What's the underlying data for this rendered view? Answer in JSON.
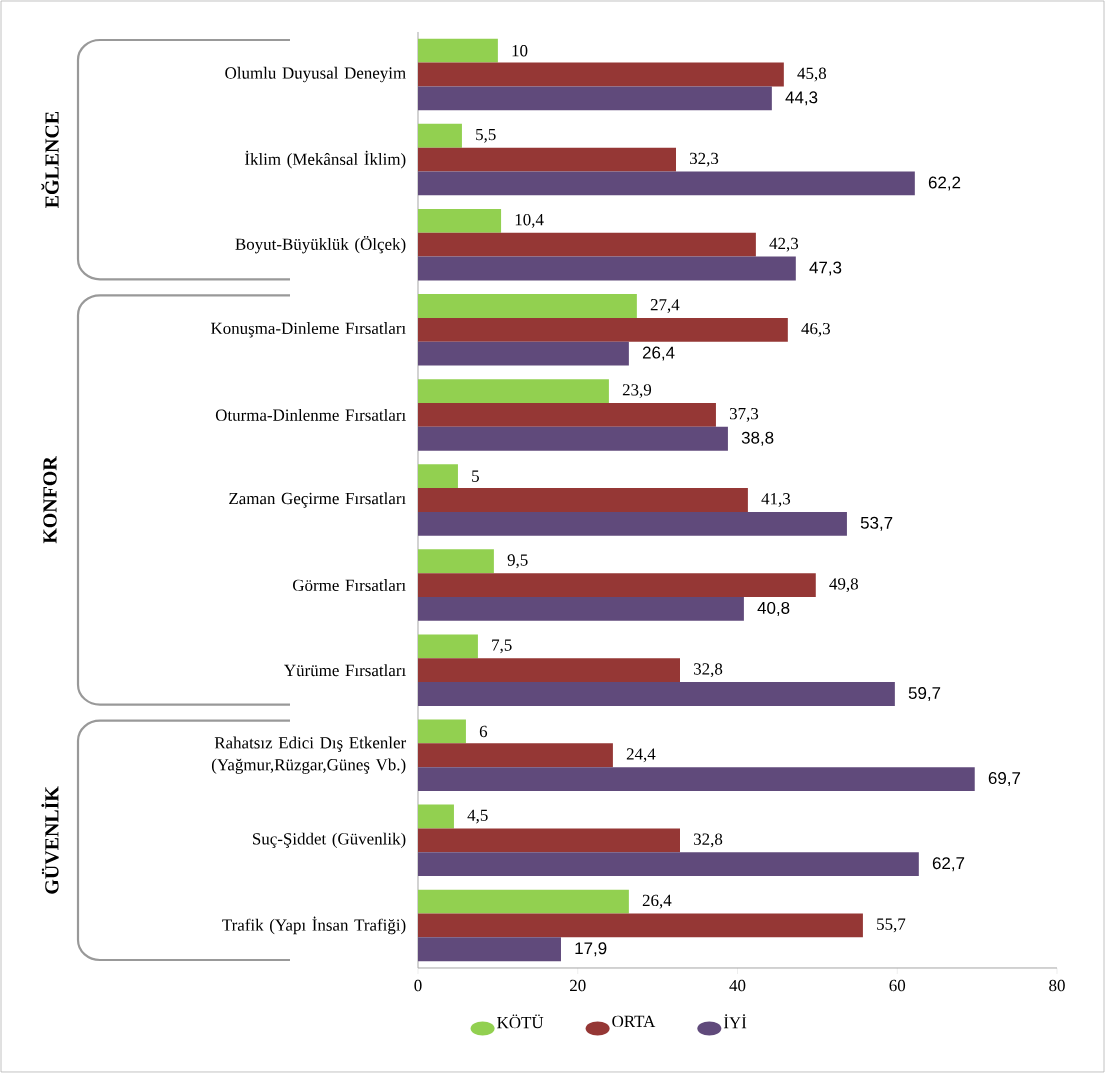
{
  "chart_data": {
    "type": "bar",
    "orientation": "horizontal",
    "categories": [
      "Olumlu Duyusal Deneyim",
      "İklim (Mekânsal İklim)",
      "Boyut-Büyüklük (Ölçek)",
      "Konuşma-Dinleme Fırsatları",
      "Oturma-Dinlenme Fırsatları",
      "Zaman Geçirme Fırsatları",
      "Görme Fırsatları",
      "Yürüme Fırsatları",
      "Rahatsız Edici Dış Etkenler (Yağmur,Rüzgar,Güneş Vb.)",
      "Suç-Şiddet (Güvenlik)",
      "Trafik (Yapı İnsan Trafiği)"
    ],
    "series": [
      {
        "name": "KÖTÜ",
        "color": "#92d050",
        "values": [
          10,
          5.5,
          10.4,
          27.4,
          23.9,
          5,
          9.5,
          7.5,
          6,
          4.5,
          26.4
        ],
        "value_labels": [
          "10",
          "5,5",
          "10,4",
          "27,4",
          "23,9",
          "5",
          "9,5",
          "7,5",
          "6",
          "4,5",
          "26,4"
        ]
      },
      {
        "name": "ORTA",
        "color": "#953735",
        "values": [
          45.8,
          32.3,
          42.3,
          46.3,
          37.3,
          41.3,
          49.8,
          32.8,
          24.4,
          32.8,
          55.7
        ],
        "value_labels": [
          "45,8",
          "32,3",
          "42,3",
          "46,3",
          "37,3",
          "41,3",
          "49,8",
          "32,8",
          "24,4",
          "32,8",
          "55,7"
        ]
      },
      {
        "name": "İYİ",
        "color": "#604a7b",
        "values": [
          44.3,
          62.2,
          47.3,
          26.4,
          38.8,
          53.7,
          40.8,
          59.7,
          69.7,
          62.7,
          17.9
        ],
        "value_labels": [
          "44,3",
          "62,2",
          "47,3",
          "26,4",
          "38,8",
          "53,7",
          "40,8",
          "59,7",
          "69,7",
          "62,7",
          "17,9"
        ]
      }
    ],
    "xlim": [
      0,
      80
    ],
    "xticks": [
      0,
      20,
      40,
      60,
      80
    ],
    "grid": false,
    "legend": "bottom",
    "annotations": [
      "EĞLENCE",
      "KONFOR",
      "GÜVENLİK"
    ]
  }
}
